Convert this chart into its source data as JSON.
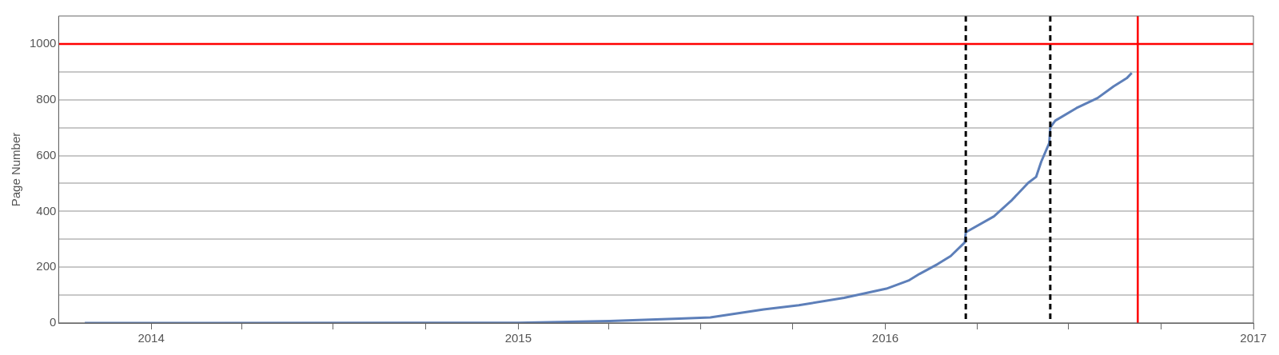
{
  "chart_data": {
    "type": "line",
    "ylabel": "Page Number",
    "xlim": [
      "2013-10-01",
      "2017-01-01"
    ],
    "ylim": [
      0,
      1100
    ],
    "xticks": [
      {
        "value": "2014-01-01",
        "label": "2014"
      },
      {
        "value": "2014-04-01",
        "label": null
      },
      {
        "value": "2014-07-01",
        "label": null
      },
      {
        "value": "2014-10-01",
        "label": null
      },
      {
        "value": "2015-01-01",
        "label": "2015"
      },
      {
        "value": "2015-04-01",
        "label": null
      },
      {
        "value": "2015-07-01",
        "label": null
      },
      {
        "value": "2015-10-01",
        "label": null
      },
      {
        "value": "2016-01-01",
        "label": "2016"
      },
      {
        "value": "2016-04-01",
        "label": null
      },
      {
        "value": "2016-07-01",
        "label": null
      },
      {
        "value": "2016-10-01",
        "label": null
      },
      {
        "value": "2017-01-01",
        "label": "2017"
      }
    ],
    "yticks": [
      0,
      {
        "value": 100,
        "label": null
      },
      200,
      {
        "value": 300,
        "label": null
      },
      400,
      {
        "value": 500,
        "label": null
      },
      600,
      {
        "value": 700,
        "label": null
      },
      800,
      {
        "value": 900,
        "label": null
      },
      1000
    ],
    "grid": "y",
    "legend": false,
    "marker": "none",
    "line_style": "solid",
    "series": [
      {
        "color": "#5d7fb9",
        "x": [
          "2013-10-27",
          "2015-01-01",
          "2015-04-02",
          "2015-06-10",
          "2015-07-11",
          "2015-09-02",
          "2015-10-07",
          "2015-11-21",
          "2016-01-02",
          "2016-01-24",
          "2016-02-04",
          "2016-02-22",
          "2016-03-06",
          "2016-03-20",
          "2016-03-21",
          "2016-04-18",
          "2016-05-06",
          "2016-05-22",
          "2016-05-30",
          "2016-06-04",
          "2016-06-12",
          "2016-06-13",
          "2016-06-18",
          "2016-07-09",
          "2016-07-30",
          "2016-08-15",
          "2016-08-28",
          "2016-09-02"
        ],
        "values": [
          0,
          1,
          7,
          16,
          20,
          49,
          64,
          90,
          123,
          152,
          176,
          211,
          240,
          289,
          325,
          382,
          441,
          502,
          524,
          578,
          645,
          701,
          725,
          770,
          806,
          848,
          877,
          896
        ]
      }
    ],
    "ref_lines": [
      {
        "axis": "y",
        "value": 1000,
        "color": "#ff0000",
        "line_style": "solid"
      },
      {
        "axis": "x",
        "value": "2016-03-21",
        "color": "#000000",
        "line_style": "dashed"
      },
      {
        "axis": "x",
        "value": "2016-06-13",
        "color": "#000000",
        "line_style": "dashed"
      },
      {
        "axis": "x",
        "value": "2016-09-08",
        "color": "#ff0000",
        "line_style": "solid"
      }
    ]
  }
}
